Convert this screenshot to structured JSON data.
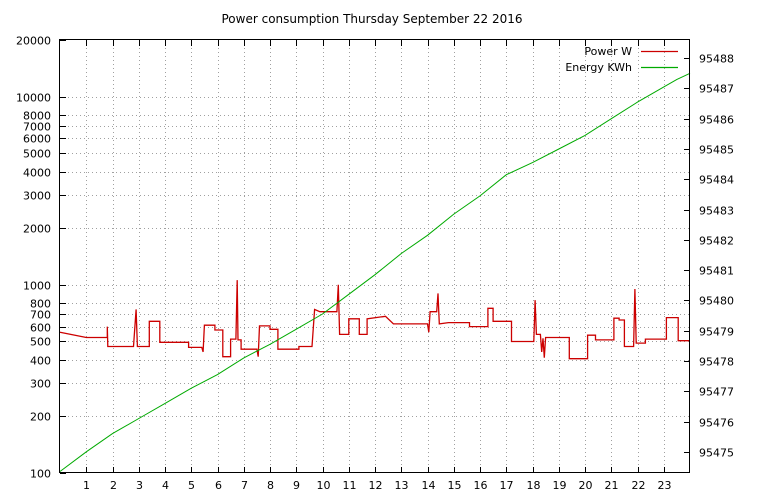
{
  "chart_data": {
    "type": "line",
    "title": "Power consumption Thursday September 22 2016",
    "xlabel": "",
    "ylabel": "",
    "x_range": [
      0,
      24
    ],
    "x_ticks": [
      1,
      2,
      3,
      4,
      5,
      6,
      7,
      8,
      9,
      10,
      11,
      12,
      13,
      14,
      15,
      16,
      17,
      18,
      19,
      20,
      21,
      22,
      23
    ],
    "y_left": {
      "scale": "log",
      "range": [
        100,
        20000
      ],
      "ticks": [
        100,
        200,
        300,
        400,
        500,
        600,
        700,
        800,
        1000,
        2000,
        3000,
        4000,
        5000,
        6000,
        7000,
        8000,
        10000,
        20000
      ],
      "tick_labels": [
        "100",
        "200",
        "300",
        "400",
        "500",
        "600",
        "700",
        "800",
        "1000",
        "2000",
        "3000",
        "4000",
        "5000",
        "6000",
        "7000",
        "8000",
        "10000",
        "20000"
      ]
    },
    "y_right": {
      "scale": "linear",
      "range": [
        95474.3,
        95488.6
      ],
      "ticks": [
        95475,
        95476,
        95477,
        95478,
        95479,
        95480,
        95481,
        95482,
        95483,
        95484,
        95485,
        95486,
        95487,
        95488
      ],
      "tick_labels": [
        "95475",
        "95476",
        "95477",
        "95478",
        "95479",
        "95480",
        "95481",
        "95482",
        "95483",
        "95484",
        "95485",
        "95486",
        "95487",
        "95488"
      ]
    },
    "grid": true,
    "legend_position": "top-right",
    "series": [
      {
        "name": "Power W",
        "color": "#cc0000",
        "axis": "left",
        "style": "step",
        "points": [
          [
            0,
            560
          ],
          [
            1,
            525
          ],
          [
            1.8,
            525
          ],
          [
            1.8,
            600
          ],
          [
            1.82,
            470
          ],
          [
            2.8,
            470
          ],
          [
            2.9,
            740
          ],
          [
            2.95,
            470
          ],
          [
            3.4,
            470
          ],
          [
            3.4,
            640
          ],
          [
            3.8,
            640
          ],
          [
            3.8,
            495
          ],
          [
            4.9,
            495
          ],
          [
            4.9,
            465
          ],
          [
            5.4,
            465
          ],
          [
            5.45,
            440
          ],
          [
            5.5,
            610
          ],
          [
            5.9,
            610
          ],
          [
            5.9,
            575
          ],
          [
            6.2,
            575
          ],
          [
            6.2,
            415
          ],
          [
            6.5,
            415
          ],
          [
            6.5,
            515
          ],
          [
            6.7,
            515
          ],
          [
            6.75,
            1060
          ],
          [
            6.78,
            510
          ],
          [
            6.9,
            510
          ],
          [
            6.9,
            455
          ],
          [
            7.5,
            455
          ],
          [
            7.55,
            415
          ],
          [
            7.6,
            605
          ],
          [
            8.0,
            605
          ],
          [
            8.0,
            580
          ],
          [
            8.3,
            580
          ],
          [
            8.3,
            455
          ],
          [
            9.1,
            455
          ],
          [
            9.1,
            470
          ],
          [
            9.6,
            470
          ],
          [
            9.7,
            740
          ],
          [
            9.9,
            720
          ],
          [
            10.55,
            720
          ],
          [
            10.6,
            1000
          ],
          [
            10.65,
            545
          ],
          [
            11.0,
            545
          ],
          [
            11.0,
            660
          ],
          [
            11.4,
            660
          ],
          [
            11.4,
            545
          ],
          [
            11.7,
            545
          ],
          [
            11.7,
            660
          ],
          [
            12.4,
            680
          ],
          [
            12.7,
            620
          ],
          [
            14.0,
            620
          ],
          [
            14.05,
            560
          ],
          [
            14.1,
            720
          ],
          [
            14.35,
            720
          ],
          [
            14.4,
            900
          ],
          [
            14.45,
            620
          ],
          [
            14.8,
            630
          ],
          [
            15.6,
            630
          ],
          [
            15.6,
            600
          ],
          [
            16.3,
            600
          ],
          [
            16.3,
            750
          ],
          [
            16.5,
            750
          ],
          [
            16.5,
            640
          ],
          [
            17.2,
            640
          ],
          [
            17.2,
            500
          ],
          [
            18.05,
            500
          ],
          [
            18.1,
            830
          ],
          [
            18.15,
            545
          ],
          [
            18.3,
            545
          ],
          [
            18.35,
            440
          ],
          [
            18.4,
            520
          ],
          [
            18.45,
            410
          ],
          [
            18.5,
            525
          ],
          [
            19.4,
            525
          ],
          [
            19.4,
            405
          ],
          [
            20.1,
            405
          ],
          [
            20.1,
            540
          ],
          [
            20.4,
            540
          ],
          [
            20.4,
            510
          ],
          [
            21.1,
            510
          ],
          [
            21.1,
            665
          ],
          [
            21.3,
            665
          ],
          [
            21.3,
            650
          ],
          [
            21.5,
            650
          ],
          [
            21.5,
            470
          ],
          [
            21.85,
            470
          ],
          [
            21.9,
            950
          ],
          [
            21.95,
            490
          ],
          [
            22.3,
            490
          ],
          [
            22.3,
            515
          ],
          [
            23.1,
            515
          ],
          [
            23.1,
            670
          ],
          [
            23.55,
            670
          ],
          [
            23.55,
            505
          ],
          [
            24,
            505
          ]
        ]
      },
      {
        "name": "Energy KWh",
        "color": "#00aa00",
        "axis": "right",
        "style": "line",
        "points": [
          [
            0,
            95474.35
          ],
          [
            1,
            95475.0
          ],
          [
            2,
            95475.6
          ],
          [
            3,
            95476.1
          ],
          [
            4,
            95476.6
          ],
          [
            5,
            95477.1
          ],
          [
            6,
            95477.55
          ],
          [
            7,
            95478.1
          ],
          [
            8,
            95478.55
          ],
          [
            9,
            95479.05
          ],
          [
            10,
            95479.55
          ],
          [
            11,
            95480.2
          ],
          [
            12,
            95480.85
          ],
          [
            13,
            95481.55
          ],
          [
            14,
            95482.15
          ],
          [
            15,
            95482.85
          ],
          [
            16,
            95483.45
          ],
          [
            17,
            95484.15
          ],
          [
            18,
            95484.55
          ],
          [
            19,
            95485.0
          ],
          [
            20,
            95485.45
          ],
          [
            21,
            95486.0
          ],
          [
            22,
            95486.55
          ],
          [
            23,
            95487.05
          ],
          [
            23.5,
            95487.3
          ],
          [
            24,
            95487.5
          ]
        ]
      }
    ]
  }
}
